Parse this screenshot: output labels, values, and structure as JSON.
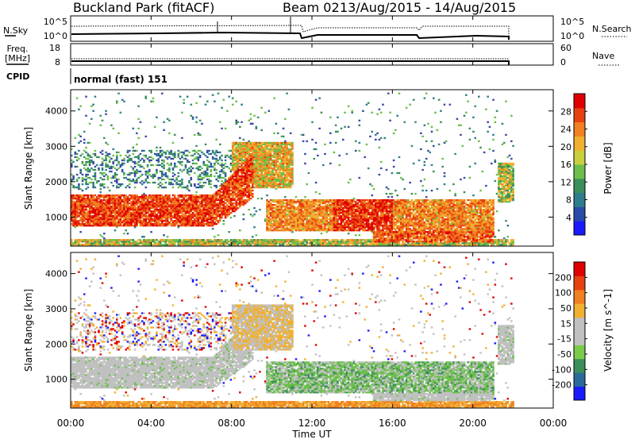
{
  "header": {
    "title": "Buckland Park (fitACF)",
    "beam": "Beam 02",
    "date_range": "13/Aug/2015 - 14/Aug/2015"
  },
  "top_panels": {
    "sky_label": "N.Sky",
    "sky_ticks": [
      "10^5",
      "10^0"
    ],
    "search_label": "N.Search",
    "search_ticks": [
      "10^5",
      "10^0"
    ],
    "freq_label": "Freq.",
    "freq_unit": "[MHz]",
    "freq_ticks": [
      "18",
      "8"
    ],
    "nave_label": "Nave",
    "nave_ticks": [
      "60",
      "0"
    ],
    "cpid_label": "CPID",
    "cpid_text": "normal (fast) 151"
  },
  "chart_data": [
    {
      "type": "heatmap",
      "name": "Power",
      "ylabel": "Slant Range [km]",
      "ylim": [
        180,
        4600
      ],
      "yticks": [
        "1000",
        "2000",
        "3000",
        "4000"
      ],
      "xlim_hours": [
        0,
        24
      ],
      "colorbar": {
        "label": "Power [dB]",
        "ticks": [
          "4",
          "8",
          "12",
          "16",
          "20",
          "24",
          "28"
        ],
        "colors": [
          "#1a1aff",
          "#2a4aa8",
          "#2e7d8c",
          "#3a8f5a",
          "#6bbf4a",
          "#c8d040",
          "#f0b030",
          "#f08020",
          "#e84010",
          "#e00000"
        ]
      }
    },
    {
      "type": "heatmap",
      "name": "Velocity",
      "ylabel": "Slant Range [km]",
      "ylim": [
        180,
        4600
      ],
      "yticks": [
        "1000",
        "2000",
        "3000",
        "4000"
      ],
      "xlim_hours": [
        0,
        24
      ],
      "colorbar": {
        "label": "Velocity [m s^-1]",
        "ticks": [
          "200",
          "100",
          "50",
          "15",
          "-15",
          "-50",
          "-100",
          "-200"
        ],
        "colors": [
          "#1a1aff",
          "#2a6a9a",
          "#3a8f5a",
          "#7acc4a",
          "#c0c0c0",
          "#c0c0c0",
          "#f0b030",
          "#f08020",
          "#e84010",
          "#e00000"
        ]
      }
    }
  ],
  "x_axis": {
    "ticks": [
      "00:00",
      "04:00",
      "08:00",
      "12:00",
      "16:00",
      "20:00",
      "00:00"
    ],
    "label": "Time UT"
  },
  "colors": {
    "gray": "#c0c0c0",
    "red": "#e00000",
    "orange": "#f08020",
    "yellow": "#f0b030",
    "green": "#6bbf4a",
    "darkgreen": "#3a8f5a",
    "blue": "#1a1aff"
  }
}
